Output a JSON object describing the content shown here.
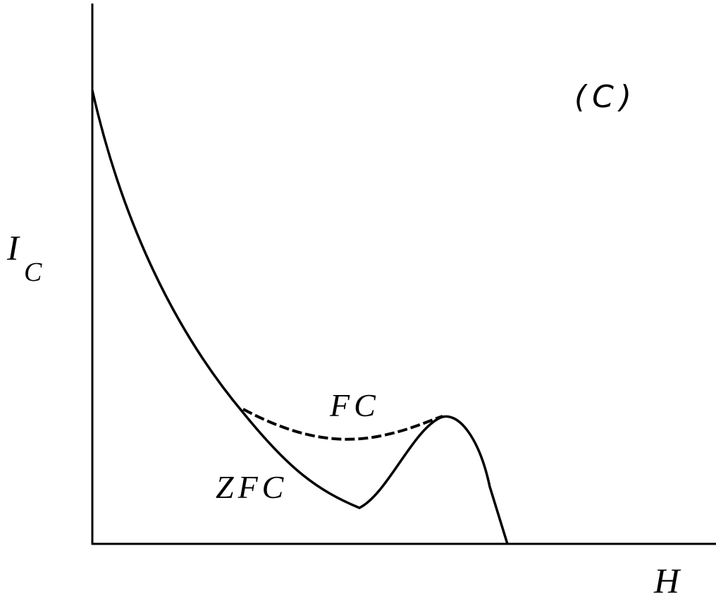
{
  "axes": {
    "y_label": {
      "main": "I",
      "subscript": "C"
    },
    "x_label": "H"
  },
  "panel_label": "(C)",
  "curves": [
    {
      "label": "ZFC"
    },
    {
      "label": "FC"
    }
  ]
}
